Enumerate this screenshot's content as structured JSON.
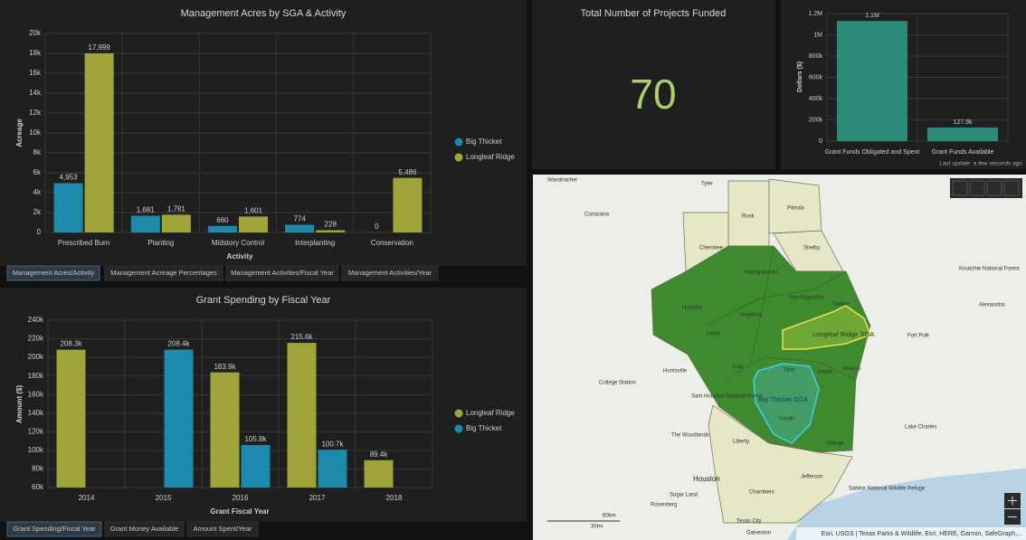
{
  "chart_data": [
    {
      "type": "bar",
      "title": "Management Acres by SGA & Activity",
      "xlabel": "Activity",
      "ylabel": "Acreage",
      "categories": [
        "Prescribed Burn",
        "Planting",
        "Midstory Control",
        "Interplanting",
        "Conservation"
      ],
      "series": [
        {
          "name": "Big Thicket",
          "color": "#1d89ab",
          "values": [
            4953,
            1681,
            660,
            774,
            0
          ],
          "value_labels": [
            "4,953",
            "1,681",
            "660",
            "774",
            "0"
          ]
        },
        {
          "name": "Longleaf Ridge",
          "color": "#a0a337",
          "values": [
            17999,
            1781,
            1601,
            228,
            5486
          ],
          "value_labels": [
            "17,999",
            "1,781",
            "1,601",
            "228",
            "5,486"
          ]
        }
      ],
      "ylim": [
        0,
        20000
      ],
      "yticks": [
        0,
        {
          "value": 2000,
          "label": "2k"
        },
        {
          "value": 4000,
          "label": "4k"
        },
        {
          "value": 6000,
          "label": "6k"
        },
        {
          "value": 8000,
          "label": "8k"
        },
        {
          "value": 10000,
          "label": "10k"
        },
        {
          "value": 12000,
          "label": "12k"
        },
        {
          "value": 14000,
          "label": "14k"
        },
        {
          "value": 16000,
          "label": "16k"
        },
        {
          "value": 18000,
          "label": "18k"
        },
        {
          "value": 20000,
          "label": "20k"
        }
      ],
      "grid": true,
      "legend": "right"
    },
    {
      "type": "bar",
      "title": "Grant Spending by Fiscal Year",
      "xlabel": "Grant Fiscal Year",
      "ylabel": "Amount ($)",
      "categories": [
        "2014",
        "2015",
        "2016",
        "2017",
        "2018"
      ],
      "series": [
        {
          "name": "Longleaf Ridge",
          "color": "#a0a337",
          "values": [
            208300,
            null,
            183900,
            215600,
            89400
          ],
          "value_labels": [
            "208.3k",
            null,
            "183.9k",
            "215.6k",
            "89.4k"
          ]
        },
        {
          "name": "Big Thicket",
          "color": "#1d89ab",
          "values": [
            null,
            208400,
            105800,
            100700,
            null
          ],
          "value_labels": [
            null,
            "208.4k",
            "105.8k",
            "100.7k",
            null
          ]
        }
      ],
      "ylim": [
        60000,
        240000
      ],
      "yticks": [
        {
          "value": 60000,
          "label": "60k"
        },
        {
          "value": 80000,
          "label": "80k"
        },
        {
          "value": 100000,
          "label": "100k"
        },
        {
          "value": 120000,
          "label": "120k"
        },
        {
          "value": 140000,
          "label": "140k"
        },
        {
          "value": 160000,
          "label": "160k"
        },
        {
          "value": 180000,
          "label": "180k"
        },
        {
          "value": 200000,
          "label": "200k"
        },
        {
          "value": 220000,
          "label": "220k"
        },
        {
          "value": 240000,
          "label": "240k"
        }
      ],
      "grid": true,
      "legend": "right"
    },
    {
      "type": "bar",
      "ylabel": "Dollars ($)",
      "categories": [
        "Grant Funds Obligated and Spent",
        "Grant Funds Available"
      ],
      "values": [
        1130000,
        127900
      ],
      "value_labels": [
        "1.1M",
        "127.9k"
      ],
      "color": "#2b8a78",
      "ylim": [
        0,
        1200000
      ],
      "yticks": [
        0,
        {
          "value": 200000,
          "label": "200k"
        },
        {
          "value": 400000,
          "label": "400k"
        },
        {
          "value": 600000,
          "label": "600k"
        },
        {
          "value": 800000,
          "label": "800k"
        },
        {
          "value": 1000000,
          "label": "1M"
        },
        {
          "value": 1200000,
          "label": "1.2M"
        }
      ],
      "grid": true,
      "note": "Last update: a few seconds ago"
    }
  ],
  "indicator": {
    "title": "Total Number of Projects Funded",
    "value": 70
  },
  "tabs": [
    [
      "Management Acres/Activity",
      "Management Acreage Percentages",
      "Management Activities/Fiscal Year",
      "Management Activities/Year"
    ],
    [
      "Grant Spending/Fiscal Year",
      "Grant Money Available",
      "Amount Spent/Year"
    ]
  ],
  "map": {
    "labels": [
      "Waxahachie",
      "Tyler",
      "Corsicana",
      "Rusk",
      "Panola",
      "Cherokee",
      "Shelby",
      "Nacogdoches",
      "San Augustine",
      "Sabine",
      "Houston",
      "Angelina",
      "Trinity",
      "Polk",
      "Tyler",
      "Jasper",
      "Newton",
      "Hardin",
      "Orange",
      "Liberty",
      "Jefferson",
      "Chambers",
      "Longleaf Ridge SGA",
      "Big Thicket SGA",
      "College Station",
      "Huntsville",
      "Sam Houston National Forest",
      "Kisatchie National Forest",
      "Alexandria",
      "Fort Polk",
      "Lake Charles",
      "Houston",
      "Sugar Land",
      "Rosenberg",
      "Texas City",
      "Galveston",
      "The Woodlands",
      "Sabine National Wildlife Refuge"
    ],
    "scale": [
      "60km",
      "30mi"
    ],
    "attribution": "Esri, USGS | Texas Parks & Wildlife, Esri, HERE, Garmin, SafeGraph,..."
  }
}
